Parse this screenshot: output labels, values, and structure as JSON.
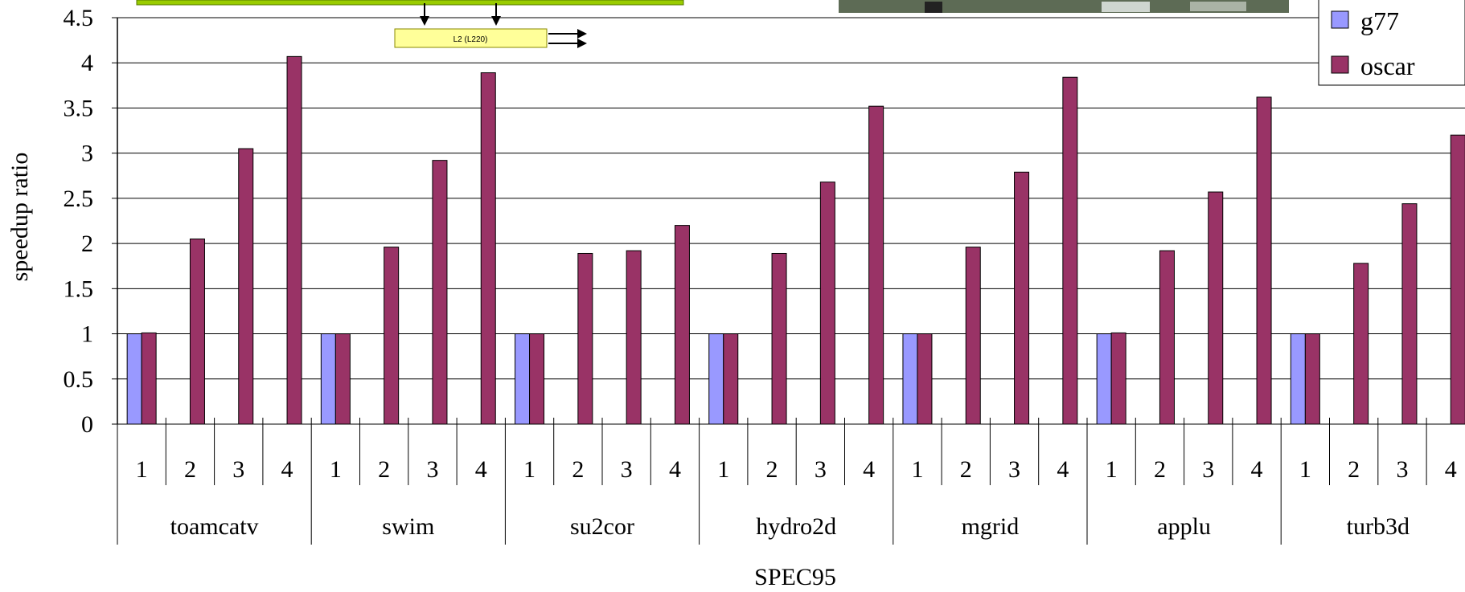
{
  "chart_data": {
    "type": "bar",
    "ylabel": "speedup ratio",
    "xlabel": "SPEC95",
    "ylim": [
      0,
      4.5
    ],
    "yticks": [
      "0",
      "0.5",
      "1",
      "1.5",
      "2",
      "2.5",
      "3",
      "3.5",
      "4",
      "4.5"
    ],
    "grid": true,
    "legend_position": "top-right",
    "groups": [
      "toamcatv",
      "swim",
      "su2cor",
      "hydro2d",
      "mgrid",
      "applu",
      "turb3d"
    ],
    "subcategories": [
      "1",
      "2",
      "3",
      "4"
    ],
    "series": [
      {
        "name": "g77",
        "color": "#9999ff",
        "values": [
          [
            1.0,
            null,
            null,
            null
          ],
          [
            1.0,
            null,
            null,
            null
          ],
          [
            1.0,
            null,
            null,
            null
          ],
          [
            1.0,
            null,
            null,
            null
          ],
          [
            1.0,
            null,
            null,
            null
          ],
          [
            1.0,
            null,
            null,
            null
          ],
          [
            1.0,
            null,
            null,
            null
          ]
        ]
      },
      {
        "name": "oscar",
        "color": "#993366",
        "values": [
          [
            1.01,
            2.05,
            3.05,
            4.07
          ],
          [
            1.0,
            1.96,
            2.92,
            3.89
          ],
          [
            1.0,
            1.89,
            1.92,
            2.2
          ],
          [
            1.0,
            1.89,
            2.68,
            3.52
          ],
          [
            1.0,
            1.96,
            2.79,
            3.84
          ],
          [
            1.01,
            1.92,
            2.57,
            3.62
          ],
          [
            1.0,
            1.78,
            2.44,
            3.2
          ]
        ]
      }
    ],
    "overlay_text": "L2 (L220)"
  }
}
